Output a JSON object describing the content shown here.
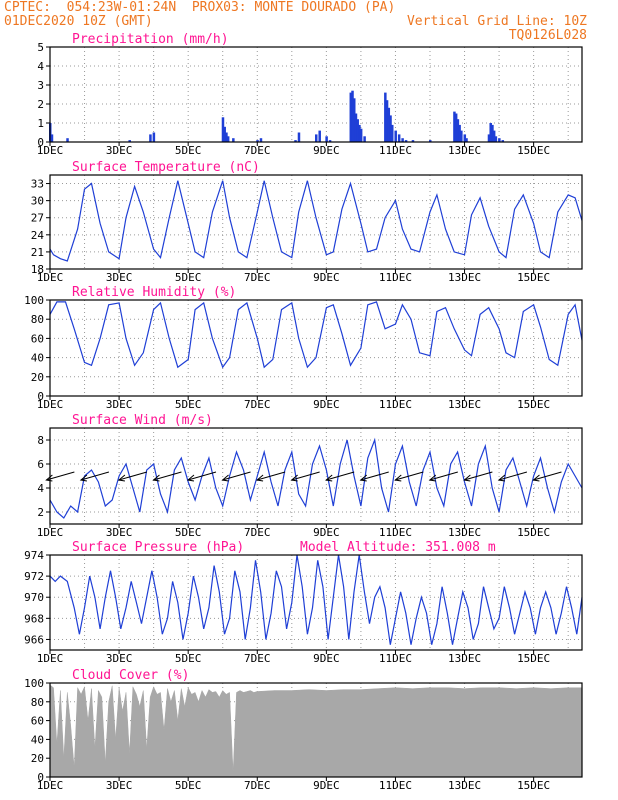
{
  "header": {
    "line1": "CPTEC:  054:23W-01:24N  PROX03: MONTE DOURADO (PA)",
    "line2_left": "01DEC2020 10Z (GMT)",
    "line2_right": "Vertical Grid Line: 10Z",
    "line3_right": "TQ0126L028"
  },
  "colors": {
    "header": "#ee7722",
    "title": "#ff1493",
    "series": "#1f3fd6",
    "cloud": "#a8a8a8",
    "grid": "#9a9a9a"
  },
  "x_labels": [
    "1DEC",
    "3DEC",
    "5DEC",
    "7DEC",
    "9DEC",
    "11DEC",
    "13DEC",
    "15DEC"
  ],
  "chart_data": [
    {
      "type": "bar",
      "title": "Precipitation (mm/h)",
      "x_range_days": [
        1,
        16.4
      ],
      "ylim": [
        0,
        5
      ],
      "yticks": [
        "0",
        "1",
        "2",
        "3",
        "4",
        "5"
      ],
      "x": [
        1.0,
        1.05,
        1.5,
        3.3,
        3.9,
        4.0,
        6.0,
        6.05,
        6.1,
        6.15,
        6.3,
        7.0,
        7.1,
        8.1,
        8.2,
        8.7,
        8.8,
        9.0,
        9.1,
        9.7,
        9.75,
        9.8,
        9.85,
        9.9,
        9.95,
        10.0,
        10.1,
        10.7,
        10.75,
        10.8,
        10.85,
        10.9,
        11.0,
        11.1,
        11.2,
        11.3,
        11.5,
        12.0,
        12.7,
        12.75,
        12.8,
        12.85,
        12.9,
        13.0,
        13.05,
        13.7,
        13.75,
        13.8,
        13.85,
        13.9,
        14.0,
        14.1
      ],
      "values": [
        1.0,
        0.4,
        0.2,
        0.1,
        0.4,
        0.5,
        1.3,
        0.8,
        0.5,
        0.3,
        0.2,
        0.1,
        0.2,
        0.1,
        0.5,
        0.4,
        0.6,
        0.3,
        0.1,
        2.6,
        2.7,
        2.3,
        1.5,
        1.2,
        0.9,
        0.7,
        0.3,
        2.6,
        2.2,
        1.8,
        1.4,
        0.9,
        0.6,
        0.4,
        0.2,
        0.1,
        0.1,
        0.1,
        1.6,
        1.5,
        1.2,
        0.9,
        0.6,
        0.4,
        0.2,
        0.4,
        1.0,
        0.9,
        0.6,
        0.3,
        0.2,
        0.1
      ],
      "grid": true
    },
    {
      "type": "line",
      "title": "Surface Temperature (nC)",
      "x_range_days": [
        1,
        16.4
      ],
      "ylim": [
        18,
        34.5
      ],
      "yticks": [
        "18",
        "21",
        "24",
        "27",
        "30",
        "33"
      ],
      "series": [
        {
          "x": [
            1.0,
            1.1,
            1.3,
            1.5,
            1.8,
            2.0,
            2.2,
            2.45,
            2.7,
            3.0,
            3.2,
            3.45,
            3.7,
            4.0,
            4.2,
            4.45,
            4.7,
            5.0,
            5.2,
            5.45,
            5.7,
            6.0,
            6.2,
            6.45,
            6.7,
            7.0,
            7.2,
            7.45,
            7.7,
            8.0,
            8.2,
            8.45,
            8.7,
            9.0,
            9.2,
            9.45,
            9.7,
            10.0,
            10.2,
            10.45,
            10.7,
            11.0,
            11.2,
            11.45,
            11.7,
            12.0,
            12.2,
            12.45,
            12.7,
            13.0,
            13.2,
            13.45,
            13.7,
            14.0,
            14.2,
            14.45,
            14.7,
            15.0,
            15.2,
            15.45,
            15.7,
            16.0,
            16.2,
            16.4
          ],
          "y": [
            21.5,
            20.5,
            19.8,
            19.4,
            25.0,
            32.0,
            33.0,
            26.0,
            21.0,
            19.8,
            27.0,
            32.5,
            28.0,
            21.5,
            20.0,
            27.0,
            33.5,
            26.0,
            21.0,
            20.0,
            28.0,
            33.5,
            27.0,
            21.0,
            20.0,
            28.0,
            33.5,
            27.0,
            21.0,
            20.0,
            28.0,
            33.5,
            27.0,
            20.5,
            21.0,
            28.5,
            33.0,
            26.0,
            21.0,
            21.5,
            27.0,
            30.0,
            25.0,
            21.5,
            21.0,
            28.0,
            31.0,
            25.0,
            21.0,
            20.5,
            27.5,
            30.5,
            25.5,
            21.0,
            20.0,
            28.5,
            31.0,
            26.0,
            21.0,
            20.0,
            28.0,
            31.0,
            30.5,
            26.5
          ]
        }
      ],
      "grid": true
    },
    {
      "type": "line",
      "title": "Relative Humidity (%)",
      "x_range_days": [
        1,
        16.4
      ],
      "ylim": [
        0,
        100
      ],
      "yticks": [
        "0",
        "20",
        "40",
        "60",
        "80",
        "100"
      ],
      "series": [
        {
          "x": [
            1.0,
            1.2,
            1.45,
            1.7,
            2.0,
            2.2,
            2.45,
            2.7,
            3.0,
            3.2,
            3.45,
            3.7,
            4.0,
            4.2,
            4.45,
            4.7,
            5.0,
            5.2,
            5.45,
            5.7,
            6.0,
            6.2,
            6.45,
            6.7,
            7.0,
            7.2,
            7.45,
            7.7,
            8.0,
            8.2,
            8.45,
            8.7,
            9.0,
            9.2,
            9.45,
            9.7,
            10.0,
            10.2,
            10.45,
            10.7,
            11.0,
            11.2,
            11.45,
            11.7,
            12.0,
            12.2,
            12.45,
            12.7,
            13.0,
            13.2,
            13.45,
            13.7,
            14.0,
            14.2,
            14.45,
            14.7,
            15.0,
            15.2,
            15.45,
            15.7,
            16.0,
            16.2,
            16.4
          ],
          "y": [
            85.0,
            98.0,
            98.0,
            70.0,
            35.0,
            32.0,
            60.0,
            95.0,
            97.0,
            60.0,
            32.0,
            45.0,
            90.0,
            97.0,
            60.0,
            30.0,
            38.0,
            90.0,
            97.0,
            60.0,
            30.0,
            40.0,
            90.0,
            97.0,
            60.0,
            30.0,
            38.0,
            90.0,
            97.0,
            60.0,
            30.0,
            40.0,
            92.0,
            95.0,
            65.0,
            32.0,
            50.0,
            95.0,
            98.0,
            70.0,
            75.0,
            95.0,
            80.0,
            45.0,
            42.0,
            88.0,
            92.0,
            70.0,
            48.0,
            42.0,
            85.0,
            92.0,
            70.0,
            45.0,
            40.0,
            88.0,
            95.0,
            72.0,
            38.0,
            32.0,
            85.0,
            95.0,
            58.0
          ]
        }
      ],
      "grid": true
    },
    {
      "type": "line",
      "title": "Surface Wind (m/s)",
      "x_range_days": [
        1,
        16.4
      ],
      "ylim": [
        1,
        9
      ],
      "yticks": [
        "2",
        "4",
        "6",
        "8"
      ],
      "series": [
        {
          "x": [
            1.0,
            1.2,
            1.4,
            1.6,
            1.8,
            2.0,
            2.2,
            2.4,
            2.6,
            2.8,
            3.0,
            3.2,
            3.4,
            3.6,
            3.8,
            4.0,
            4.2,
            4.4,
            4.6,
            4.8,
            5.0,
            5.2,
            5.4,
            5.6,
            5.8,
            6.0,
            6.2,
            6.4,
            6.6,
            6.8,
            7.0,
            7.2,
            7.4,
            7.6,
            7.8,
            8.0,
            8.2,
            8.4,
            8.6,
            8.8,
            9.0,
            9.2,
            9.4,
            9.6,
            9.8,
            10.0,
            10.2,
            10.4,
            10.6,
            10.8,
            11.0,
            11.2,
            11.4,
            11.6,
            11.8,
            12.0,
            12.2,
            12.4,
            12.6,
            12.8,
            13.0,
            13.2,
            13.4,
            13.6,
            13.8,
            14.0,
            14.2,
            14.4,
            14.6,
            14.8,
            15.0,
            15.2,
            15.4,
            15.6,
            15.8,
            16.0,
            16.2,
            16.4
          ],
          "y": [
            3.0,
            2.0,
            1.5,
            2.5,
            2.0,
            5.0,
            5.5,
            4.5,
            2.5,
            3.0,
            5.0,
            6.0,
            4.0,
            2.0,
            5.5,
            6.0,
            3.5,
            2.0,
            5.5,
            6.5,
            4.5,
            3.0,
            5.0,
            6.5,
            4.0,
            2.5,
            5.0,
            7.0,
            5.5,
            3.0,
            5.0,
            7.0,
            4.5,
            2.5,
            5.5,
            7.0,
            3.5,
            2.5,
            6.0,
            7.5,
            5.5,
            2.5,
            6.0,
            8.0,
            5.0,
            2.5,
            6.5,
            8.0,
            4.0,
            2.0,
            6.0,
            7.5,
            4.5,
            2.5,
            5.5,
            7.0,
            4.0,
            2.5,
            6.0,
            7.0,
            4.5,
            2.5,
            6.0,
            7.5,
            4.0,
            2.0,
            5.5,
            6.5,
            4.5,
            2.5,
            5.0,
            6.5,
            4.0,
            2.0,
            4.5,
            6.0,
            5.0,
            4.0
          ]
        }
      ],
      "arrow_x": [
        1.3,
        2.3,
        3.4,
        4.4,
        5.4,
        6.4,
        7.4,
        8.4,
        9.4,
        10.4,
        11.4,
        12.4,
        13.4,
        14.4,
        15.4
      ],
      "arrow_y": 5.0,
      "grid": true
    },
    {
      "type": "line",
      "title": "Surface Pressure (hPa)",
      "annotation": "Model Altitude: 351.008 m",
      "x_range_days": [
        1,
        16.4
      ],
      "ylim": [
        965,
        974
      ],
      "yticks": [
        "966",
        "968",
        "970",
        "972",
        "974"
      ],
      "series": [
        {
          "x": [
            1.0,
            1.15,
            1.3,
            1.5,
            1.7,
            1.85,
            2.0,
            2.15,
            2.3,
            2.45,
            2.6,
            2.75,
            2.9,
            3.05,
            3.2,
            3.35,
            3.5,
            3.65,
            3.8,
            3.95,
            4.1,
            4.25,
            4.4,
            4.55,
            4.7,
            4.85,
            5.0,
            5.15,
            5.3,
            5.45,
            5.6,
            5.75,
            5.9,
            6.05,
            6.2,
            6.35,
            6.5,
            6.65,
            6.8,
            6.95,
            7.1,
            7.25,
            7.4,
            7.55,
            7.7,
            7.85,
            8.0,
            8.15,
            8.3,
            8.45,
            8.6,
            8.75,
            8.9,
            9.05,
            9.2,
            9.35,
            9.5,
            9.65,
            9.8,
            9.95,
            10.1,
            10.25,
            10.4,
            10.55,
            10.7,
            10.85,
            11.0,
            11.15,
            11.3,
            11.45,
            11.6,
            11.75,
            11.9,
            12.05,
            12.2,
            12.35,
            12.5,
            12.65,
            12.8,
            12.95,
            13.1,
            13.25,
            13.4,
            13.55,
            13.7,
            13.85,
            14.0,
            14.15,
            14.3,
            14.45,
            14.6,
            14.75,
            14.9,
            15.05,
            15.2,
            15.35,
            15.5,
            15.65,
            15.8,
            15.95,
            16.1,
            16.25,
            16.4
          ],
          "y": [
            972.0,
            971.5,
            972.0,
            971.5,
            969.0,
            966.5,
            969.0,
            972.0,
            970.0,
            967.0,
            970.0,
            972.5,
            970.0,
            967.0,
            969.0,
            971.5,
            969.5,
            967.5,
            970.0,
            972.5,
            970.0,
            966.5,
            968.0,
            971.5,
            969.5,
            966.0,
            968.5,
            972.0,
            970.0,
            967.0,
            969.0,
            973.0,
            970.5,
            966.5,
            968.0,
            972.5,
            970.5,
            966.0,
            969.0,
            973.5,
            970.5,
            966.0,
            968.5,
            972.5,
            971.0,
            967.0,
            969.5,
            974.0,
            971.0,
            966.5,
            969.0,
            973.5,
            971.0,
            966.0,
            970.0,
            974.0,
            971.0,
            966.0,
            970.5,
            974.0,
            970.5,
            967.5,
            970.0,
            971.0,
            969.0,
            965.5,
            968.0,
            970.5,
            968.5,
            965.5,
            968.0,
            970.0,
            968.5,
            965.5,
            967.5,
            971.0,
            968.5,
            965.5,
            968.0,
            970.5,
            969.0,
            966.0,
            967.5,
            971.0,
            969.0,
            967.0,
            968.0,
            971.0,
            969.0,
            966.5,
            968.5,
            970.5,
            969.0,
            966.5,
            969.0,
            970.5,
            969.0,
            966.5,
            968.5,
            971.0,
            969.0,
            966.5,
            970.0
          ]
        }
      ],
      "grid": true
    },
    {
      "type": "area",
      "title": "Cloud Cover (%)",
      "x_range_days": [
        1,
        16.4
      ],
      "ylim": [
        0,
        100
      ],
      "yticks": [
        "0",
        "20",
        "40",
        "60",
        "80",
        "100"
      ],
      "x": [
        1.0,
        1.1,
        1.2,
        1.3,
        1.4,
        1.5,
        1.6,
        1.7,
        1.8,
        1.9,
        2.0,
        2.1,
        2.2,
        2.3,
        2.4,
        2.5,
        2.6,
        2.7,
        2.8,
        2.9,
        3.0,
        3.1,
        3.2,
        3.3,
        3.4,
        3.5,
        3.6,
        3.7,
        3.8,
        3.9,
        4.0,
        4.1,
        4.2,
        4.3,
        4.4,
        4.5,
        4.6,
        4.7,
        4.8,
        4.9,
        5.0,
        5.1,
        5.2,
        5.3,
        5.4,
        5.5,
        5.6,
        5.7,
        5.8,
        5.9,
        6.0,
        6.1,
        6.2,
        6.3,
        6.4,
        6.5,
        6.6,
        6.7,
        6.8,
        6.9,
        7.0,
        7.5,
        8.0,
        8.5,
        9.0,
        9.5,
        10.0,
        10.5,
        11.0,
        11.5,
        12.0,
        12.5,
        13.0,
        13.5,
        14.0,
        14.5,
        15.0,
        15.5,
        16.0,
        16.4
      ],
      "values": [
        98,
        95,
        35,
        92,
        20,
        90,
        55,
        10,
        95,
        88,
        96,
        60,
        94,
        30,
        92,
        85,
        15,
        80,
        97,
        40,
        95,
        70,
        90,
        25,
        96,
        88,
        75,
        92,
        30,
        85,
        96,
        88,
        90,
        50,
        94,
        80,
        92,
        60,
        94,
        75,
        95,
        88,
        90,
        80,
        92,
        85,
        93,
        90,
        91,
        85,
        92,
        88,
        90,
        5,
        90,
        92,
        90,
        91,
        92,
        90,
        91,
        92,
        92,
        93,
        92,
        93,
        93,
        94,
        95,
        94,
        95,
        95,
        94,
        95,
        95,
        94,
        95,
        94,
        95,
        95
      ],
      "grid": true
    }
  ]
}
